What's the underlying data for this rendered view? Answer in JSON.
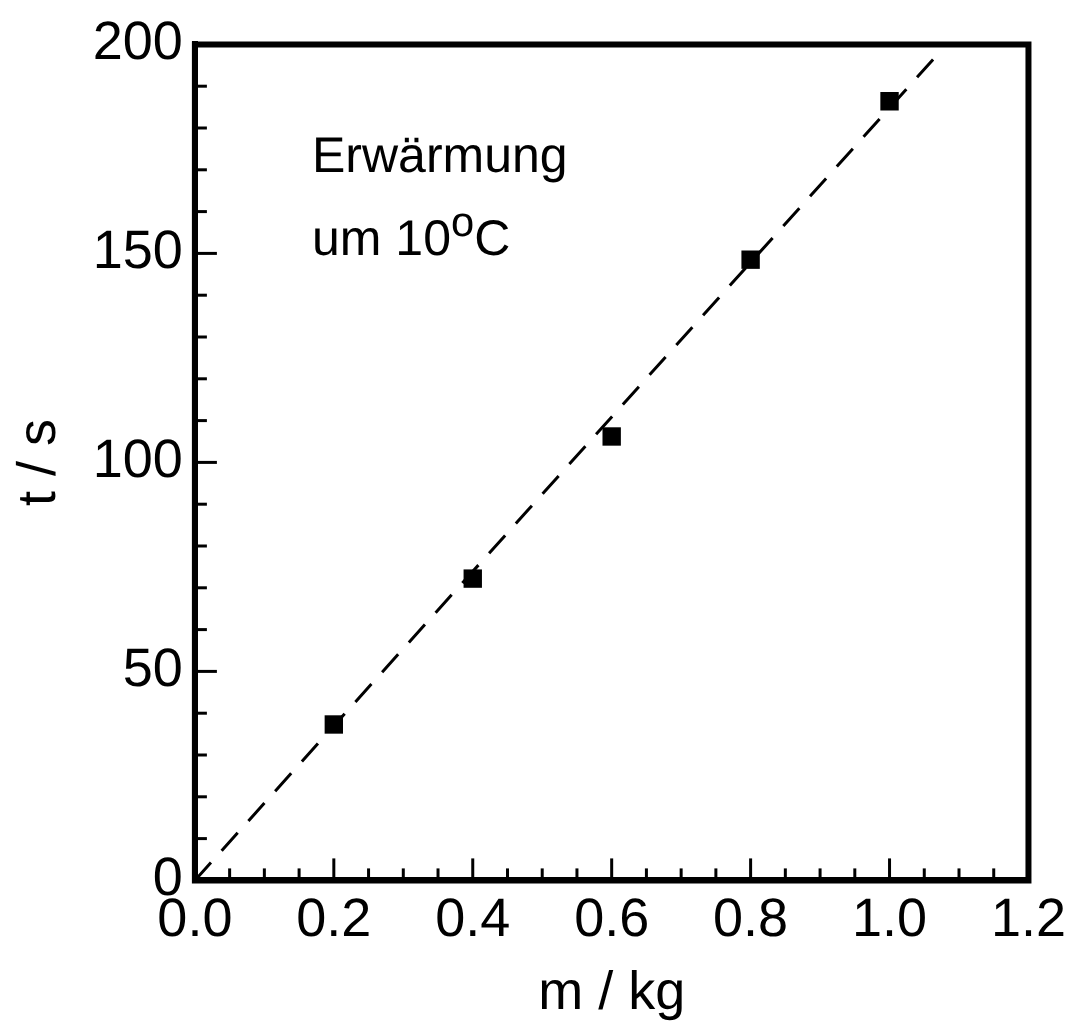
{
  "chart_data": {
    "type": "scatter",
    "xlabel": "m / kg",
    "ylabel": "t / s",
    "annotations": [
      "Erwärmung\num 10$^{o}$C"
    ],
    "series": [
      {
        "color": "#000000",
        "marker": "square",
        "x": [
          0.2,
          0.4,
          0.6,
          0.8,
          1.0
        ],
        "values": [
          37.3,
          72.2,
          106.2,
          148.5,
          186.4
        ]
      },
      {
        "type": "line",
        "color": "#000000",
        "marker": "none",
        "line_style": "dashed",
        "x": [
          0,
          1.066
        ],
        "values": [
          0,
          197
        ]
      }
    ],
    "xlim": [
      0,
      1.2
    ],
    "xticks": [
      {
        "value": 0,
        "label": "0.0"
      },
      {
        "value": 0.05,
        "label": null
      },
      {
        "value": 0.1,
        "label": null
      },
      {
        "value": 0.15,
        "label": null
      },
      {
        "value": 0.2,
        "label": "0.2"
      },
      {
        "value": 0.25,
        "label": null
      },
      {
        "value": 0.3,
        "label": null
      },
      {
        "value": 0.35,
        "label": null
      },
      {
        "value": 0.4,
        "label": "0.4"
      },
      {
        "value": 0.45,
        "label": null
      },
      {
        "value": 0.5,
        "label": null
      },
      {
        "value": 0.55,
        "label": null
      },
      {
        "value": 0.6,
        "label": "0.6"
      },
      {
        "value": 0.65,
        "label": null
      },
      {
        "value": 0.7,
        "label": null
      },
      {
        "value": 0.75,
        "label": null
      },
      {
        "value": 0.8,
        "label": "0.8"
      },
      {
        "value": 0.85,
        "label": null
      },
      {
        "value": 0.9,
        "label": null
      },
      {
        "value": 0.95,
        "label": null
      },
      {
        "value": 1.0,
        "label": "1.0"
      },
      {
        "value": 1.05,
        "label": null
      },
      {
        "value": 1.1,
        "label": null
      },
      {
        "value": 1.15,
        "label": null
      },
      {
        "value": 1.2,
        "label": "1.2"
      }
    ],
    "ylim": [
      0,
      200
    ],
    "yticks": [
      0,
      {
        "value": 10,
        "label": null
      },
      {
        "value": 20,
        "label": null
      },
      {
        "value": 30,
        "label": null
      },
      {
        "value": 40,
        "label": null
      },
      50,
      {
        "value": 60,
        "label": null
      },
      {
        "value": 70,
        "label": null
      },
      {
        "value": 80,
        "label": null
      },
      {
        "value": 90,
        "label": null
      },
      100,
      {
        "value": 110,
        "label": null
      },
      {
        "value": 120,
        "label": null
      },
      {
        "value": 130,
        "label": null
      },
      {
        "value": 140,
        "label": null
      },
      150,
      {
        "value": 160,
        "label": null
      },
      {
        "value": 170,
        "label": null
      },
      {
        "value": 180,
        "label": null
      },
      {
        "value": 190,
        "label": null
      },
      200
    ],
    "grid": false,
    "legend": false
  }
}
